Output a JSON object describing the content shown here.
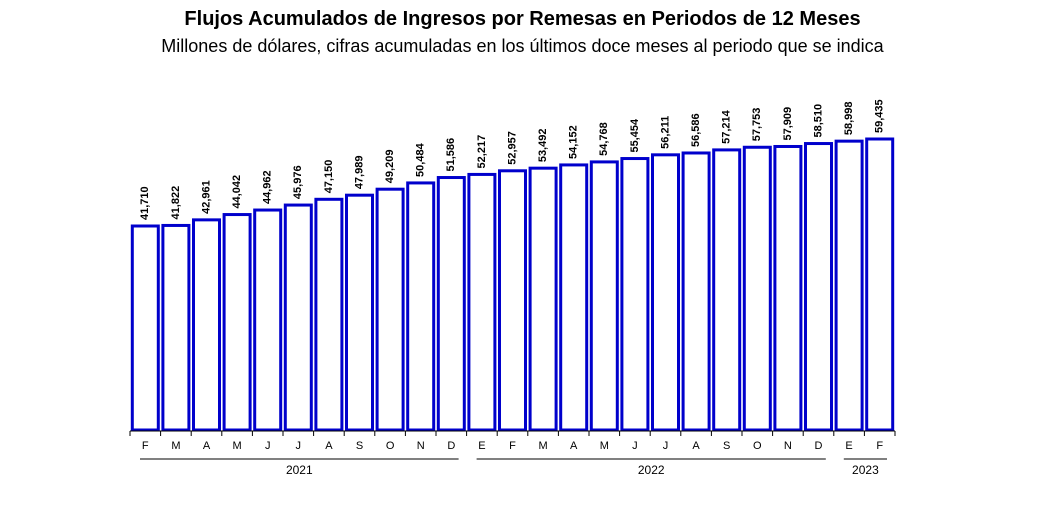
{
  "chart_data": {
    "type": "bar",
    "title": "Flujos Acumulados de Ingresos por Remesas en Periodos de 12 Meses",
    "subtitle": "Millones de dólares, cifras acumuladas en los últimos doce meses al periodo que se indica",
    "categories": [
      "F",
      "M",
      "A",
      "M",
      "J",
      "J",
      "A",
      "S",
      "O",
      "N",
      "D",
      "E",
      "F",
      "M",
      "A",
      "M",
      "J",
      "J",
      "A",
      "S",
      "O",
      "N",
      "D",
      "E",
      "F"
    ],
    "values": [
      41710,
      41822,
      42961,
      44042,
      44962,
      45976,
      47150,
      47989,
      49209,
      50484,
      51586,
      52217,
      52957,
      53492,
      54152,
      54768,
      55454,
      56211,
      56586,
      57214,
      57753,
      57909,
      58510,
      58998,
      59435
    ],
    "value_labels": [
      "41,710",
      "41,822",
      "42,961",
      "44,042",
      "44,962",
      "45,976",
      "47,150",
      "47,989",
      "49,209",
      "50,484",
      "51,586",
      "52,217",
      "52,957",
      "53,492",
      "54,152",
      "54,768",
      "55,454",
      "56,211",
      "56,586",
      "57,214",
      "57,753",
      "57,909",
      "58,510",
      "58,998",
      "59,435"
    ],
    "year_groups": [
      {
        "label": "2021",
        "start": 0,
        "end": 10
      },
      {
        "label": "2022",
        "start": 11,
        "end": 22
      },
      {
        "label": "2023",
        "start": 23,
        "end": 24
      }
    ],
    "bar_fill": "#ffffff",
    "bar_stroke": "#0000cc",
    "grid": false,
    "legend": "none"
  }
}
